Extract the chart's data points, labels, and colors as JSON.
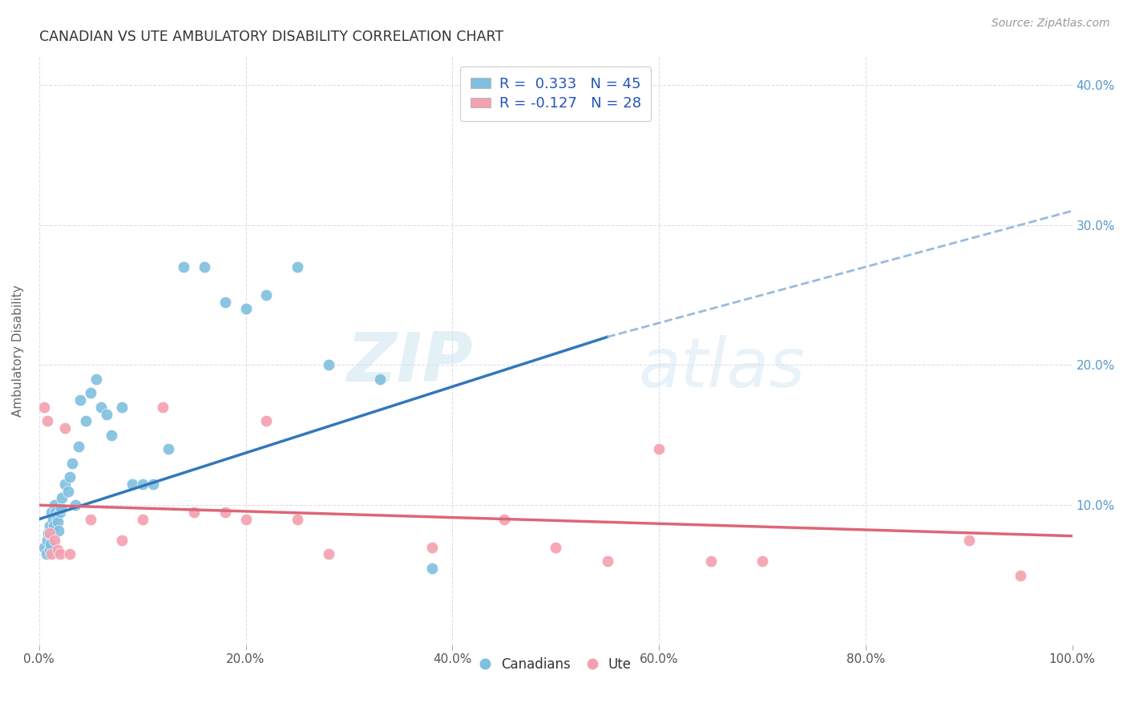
{
  "title": "CANADIAN VS UTE AMBULATORY DISABILITY CORRELATION CHART",
  "source": "Source: ZipAtlas.com",
  "ylabel": "Ambulatory Disability",
  "watermark_part1": "ZIP",
  "watermark_part2": "atlas",
  "canadians_R": 0.333,
  "canadians_N": 45,
  "ute_R": -0.127,
  "ute_N": 28,
  "xlim": [
    0,
    1.0
  ],
  "ylim": [
    0,
    0.42
  ],
  "xticks": [
    0.0,
    0.2,
    0.4,
    0.6,
    0.8,
    1.0
  ],
  "yticks": [
    0.0,
    0.1,
    0.2,
    0.3,
    0.4
  ],
  "xtick_labels": [
    "0.0%",
    "20.0%",
    "40.0%",
    "60.0%",
    "80.0%",
    "100.0%"
  ],
  "ytick_labels_right": [
    "",
    "10.0%",
    "20.0%",
    "30.0%",
    "40.0%"
  ],
  "color_canadian": "#7fbfdf",
  "color_ute": "#f4a0b0",
  "color_canadian_line": "#3377bb",
  "color_ute_line": "#dd6677",
  "color_canadian_line_ext": "#99bbdd",
  "background": "#ffffff",
  "grid_color": "#ddddee",
  "canadians_x": [
    0.005,
    0.007,
    0.008,
    0.009,
    0.01,
    0.01,
    0.011,
    0.012,
    0.013,
    0.014,
    0.015,
    0.016,
    0.017,
    0.018,
    0.019,
    0.02,
    0.021,
    0.022,
    0.025,
    0.028,
    0.03,
    0.032,
    0.035,
    0.038,
    0.04,
    0.045,
    0.05,
    0.055,
    0.06,
    0.065,
    0.07,
    0.08,
    0.09,
    0.1,
    0.11,
    0.125,
    0.14,
    0.16,
    0.18,
    0.2,
    0.22,
    0.25,
    0.28,
    0.33,
    0.38
  ],
  "canadians_y": [
    0.07,
    0.065,
    0.075,
    0.08,
    0.085,
    0.068,
    0.072,
    0.095,
    0.09,
    0.085,
    0.1,
    0.095,
    0.092,
    0.088,
    0.082,
    0.095,
    0.098,
    0.105,
    0.115,
    0.11,
    0.12,
    0.13,
    0.1,
    0.142,
    0.175,
    0.16,
    0.18,
    0.19,
    0.17,
    0.165,
    0.15,
    0.17,
    0.115,
    0.115,
    0.115,
    0.14,
    0.27,
    0.27,
    0.245,
    0.24,
    0.25,
    0.27,
    0.2,
    0.19,
    0.055
  ],
  "ute_x": [
    0.005,
    0.008,
    0.01,
    0.012,
    0.015,
    0.018,
    0.02,
    0.025,
    0.03,
    0.05,
    0.08,
    0.1,
    0.12,
    0.15,
    0.18,
    0.2,
    0.22,
    0.25,
    0.28,
    0.38,
    0.45,
    0.5,
    0.55,
    0.6,
    0.65,
    0.7,
    0.9,
    0.95
  ],
  "ute_y": [
    0.17,
    0.16,
    0.08,
    0.065,
    0.075,
    0.068,
    0.065,
    0.155,
    0.065,
    0.09,
    0.075,
    0.09,
    0.17,
    0.095,
    0.095,
    0.09,
    0.16,
    0.09,
    0.065,
    0.07,
    0.09,
    0.07,
    0.06,
    0.14,
    0.06,
    0.06,
    0.075,
    0.05
  ],
  "canadian_line_x0": 0.0,
  "canadian_line_x1": 0.55,
  "canadian_line_x2": 1.0,
  "canadian_line_y0": 0.09,
  "canadian_line_y1": 0.22,
  "canadian_line_y2": 0.31,
  "ute_line_x0": 0.0,
  "ute_line_x1": 1.0,
  "ute_line_y0": 0.1,
  "ute_line_y1": 0.078
}
